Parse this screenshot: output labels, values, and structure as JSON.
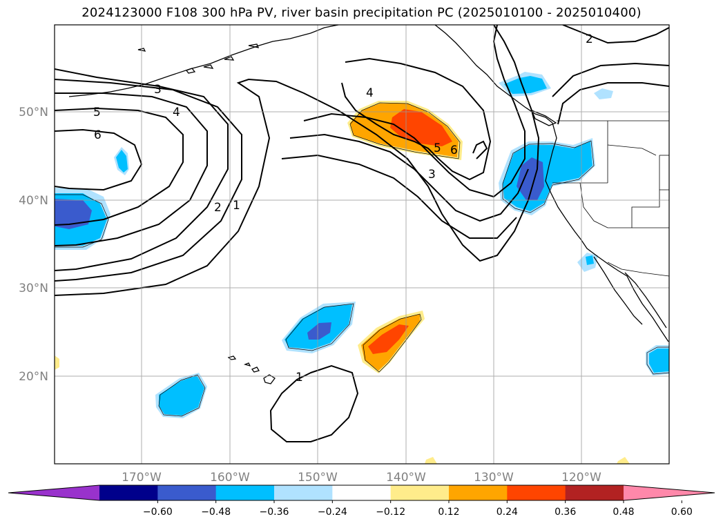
{
  "title": "2024123000 F108 300 hPa PV, river basin precipitation PC (2025010100 - 2025010400)",
  "map": {
    "lat_labels": [
      "50°N",
      "40°N",
      "30°N",
      "20°N"
    ],
    "lon_labels": [
      "170°W",
      "160°W",
      "150°W",
      "140°W",
      "130°W",
      "120°W"
    ],
    "pv_contour_labels": [
      "6",
      "5",
      "4",
      "3",
      "2",
      "1",
      "4",
      "5",
      "6",
      "3",
      "2",
      "1"
    ]
  },
  "colorbar": {
    "ticks": [
      "−0.60",
      "−0.48",
      "−0.36",
      "−0.24",
      "−0.12",
      "0.12",
      "0.24",
      "0.36",
      "0.48",
      "0.60"
    ],
    "colors": [
      "#9932cc",
      "#00008b",
      "#3a5bcd",
      "#00bfff",
      "#b0e2ff",
      "#ffffff",
      "#ffec8b",
      "#ffa500",
      "#ff4500",
      "#b22222",
      "#ff88aa"
    ]
  }
}
